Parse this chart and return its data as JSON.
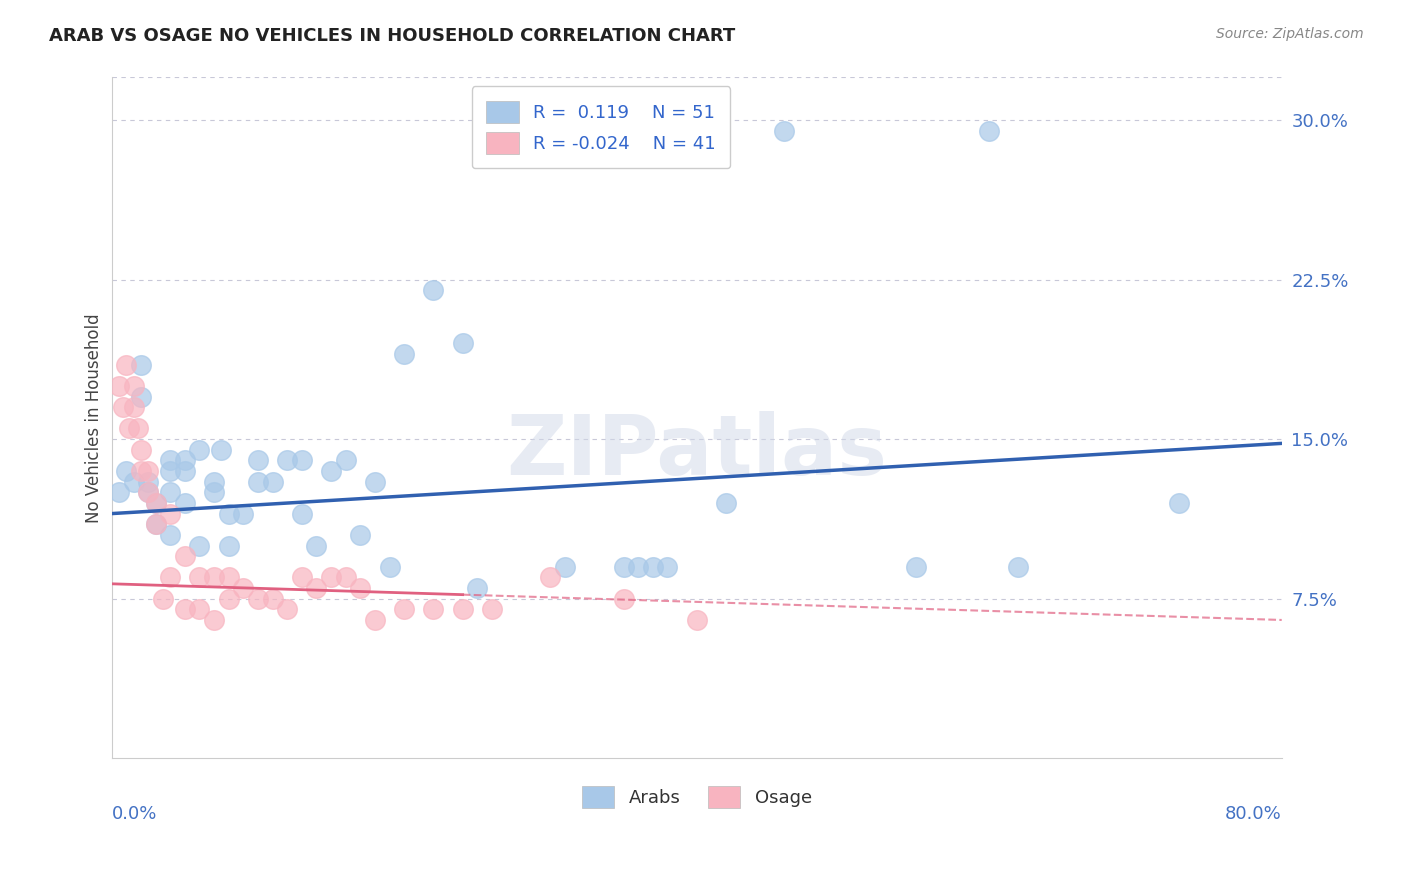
{
  "title": "ARAB VS OSAGE NO VEHICLES IN HOUSEHOLD CORRELATION CHART",
  "source": "Source: ZipAtlas.com",
  "ylabel": "No Vehicles in Household",
  "xlim": [
    0.0,
    0.8
  ],
  "ylim": [
    0.0,
    0.32
  ],
  "arab_R": 0.119,
  "arab_N": 51,
  "osage_R": -0.024,
  "osage_N": 41,
  "arab_color": "#a8c8e8",
  "arab_line_color": "#3060b0",
  "osage_color": "#f8b4c0",
  "osage_line_color": "#e06080",
  "background_color": "#ffffff",
  "grid_color": "#c8c8d8",
  "watermark": "ZIPatlas",
  "legend_text_color": "#3366cc",
  "ytick_color": "#4472c4",
  "arab_x": [
    0.005,
    0.01,
    0.015,
    0.02,
    0.02,
    0.025,
    0.025,
    0.03,
    0.03,
    0.04,
    0.04,
    0.04,
    0.04,
    0.05,
    0.05,
    0.05,
    0.06,
    0.06,
    0.07,
    0.07,
    0.075,
    0.08,
    0.08,
    0.09,
    0.1,
    0.1,
    0.11,
    0.12,
    0.13,
    0.13,
    0.14,
    0.15,
    0.16,
    0.17,
    0.18,
    0.19,
    0.2,
    0.22,
    0.24,
    0.25,
    0.31,
    0.35,
    0.36,
    0.37,
    0.38,
    0.42,
    0.46,
    0.55,
    0.6,
    0.62,
    0.73
  ],
  "arab_y": [
    0.125,
    0.135,
    0.13,
    0.185,
    0.17,
    0.13,
    0.125,
    0.12,
    0.11,
    0.14,
    0.135,
    0.125,
    0.105,
    0.14,
    0.135,
    0.12,
    0.145,
    0.1,
    0.13,
    0.125,
    0.145,
    0.115,
    0.1,
    0.115,
    0.14,
    0.13,
    0.13,
    0.14,
    0.14,
    0.115,
    0.1,
    0.135,
    0.14,
    0.105,
    0.13,
    0.09,
    0.19,
    0.22,
    0.195,
    0.08,
    0.09,
    0.09,
    0.09,
    0.09,
    0.09,
    0.12,
    0.295,
    0.09,
    0.295,
    0.09,
    0.12
  ],
  "osage_x": [
    0.005,
    0.008,
    0.01,
    0.012,
    0.015,
    0.015,
    0.018,
    0.02,
    0.02,
    0.025,
    0.025,
    0.03,
    0.03,
    0.035,
    0.04,
    0.04,
    0.05,
    0.05,
    0.06,
    0.06,
    0.07,
    0.07,
    0.08,
    0.08,
    0.09,
    0.1,
    0.11,
    0.12,
    0.13,
    0.14,
    0.15,
    0.16,
    0.17,
    0.18,
    0.2,
    0.22,
    0.24,
    0.26,
    0.3,
    0.35,
    0.4
  ],
  "osage_y": [
    0.175,
    0.165,
    0.185,
    0.155,
    0.175,
    0.165,
    0.155,
    0.145,
    0.135,
    0.135,
    0.125,
    0.12,
    0.11,
    0.075,
    0.115,
    0.085,
    0.095,
    0.07,
    0.085,
    0.07,
    0.085,
    0.065,
    0.085,
    0.075,
    0.08,
    0.075,
    0.075,
    0.07,
    0.085,
    0.08,
    0.085,
    0.085,
    0.08,
    0.065,
    0.07,
    0.07,
    0.07,
    0.07,
    0.085,
    0.075,
    0.065
  ]
}
